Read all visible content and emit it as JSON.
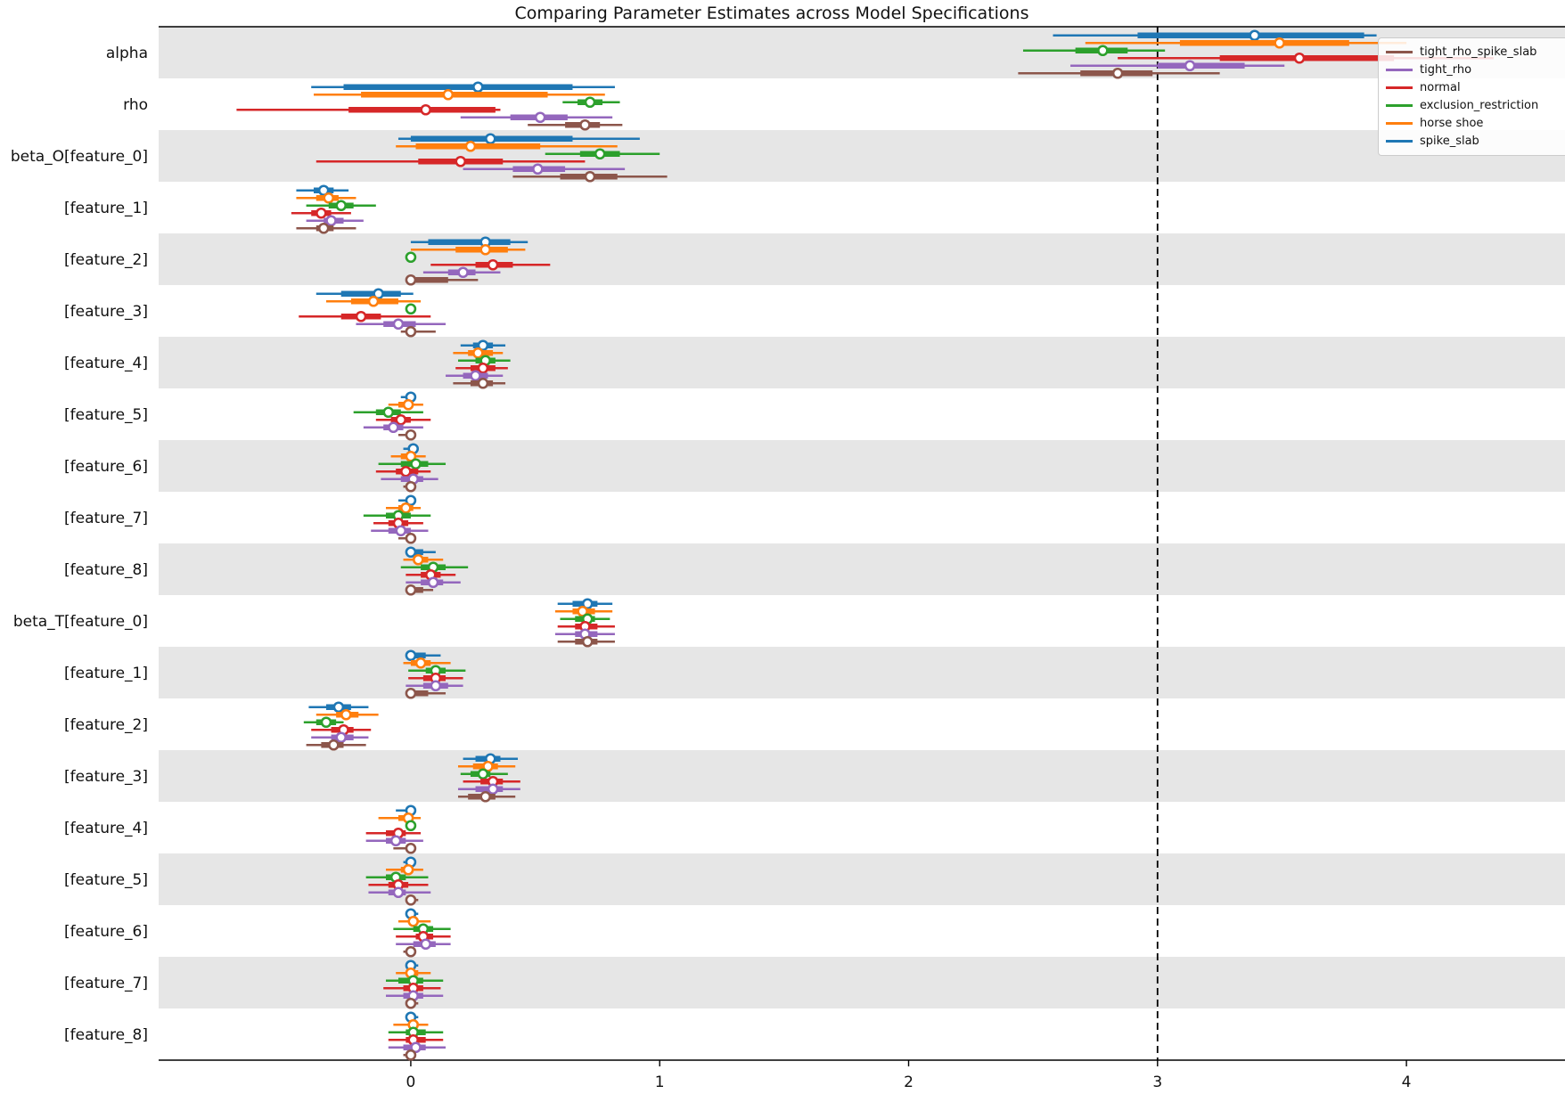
{
  "title": "Comparing Parameter Estimates across Model Specifications",
  "legend": {
    "entries": [
      {
        "label": "tight_rho_spike_slab",
        "color": "#8c564b"
      },
      {
        "label": "tight_rho",
        "color": "#9467bd"
      },
      {
        "label": "normal",
        "color": "#d62728"
      },
      {
        "label": "exclusion_restriction",
        "color": "#2ca02c"
      },
      {
        "label": "horse shoe",
        "color": "#ff7f0e"
      },
      {
        "label": "spike_slab",
        "color": "#1f77b4"
      }
    ]
  },
  "chart_data": {
    "type": "forest",
    "title": "Comparing Parameter Estimates across Model Specifications",
    "xlim": [
      -1.013,
      4.637
    ],
    "x_ticks": [
      0,
      1,
      2,
      3,
      4
    ],
    "reference_line_x": 3,
    "band_color": "#e6e6e6",
    "interval_note": "estimates are [outer_lo, inner_lo, mean, inner_hi, outer_hi] per model",
    "models": [
      {
        "name": "spike_slab",
        "color": "#1f77b4"
      },
      {
        "name": "horse shoe",
        "color": "#ff7f0e"
      },
      {
        "name": "exclusion_restriction",
        "color": "#2ca02c"
      },
      {
        "name": "normal",
        "color": "#d62728"
      },
      {
        "name": "tight_rho",
        "color": "#9467bd"
      },
      {
        "name": "tight_rho_spike_slab",
        "color": "#8c564b"
      }
    ],
    "rows": [
      {
        "label": "alpha",
        "estimates": [
          [
            2.58,
            2.92,
            3.39,
            3.83,
            3.88
          ],
          [
            2.71,
            3.09,
            3.49,
            3.77,
            4.0
          ],
          [
            2.46,
            2.67,
            2.78,
            2.88,
            3.03
          ],
          [
            2.84,
            3.25,
            3.57,
            3.95,
            4.35
          ],
          [
            2.65,
            3.0,
            3.13,
            3.35,
            3.51
          ],
          [
            2.44,
            2.69,
            2.84,
            2.98,
            3.25
          ]
        ]
      },
      {
        "label": "rho",
        "estimates": [
          [
            -0.4,
            -0.27,
            0.27,
            0.65,
            0.82
          ],
          [
            -0.39,
            -0.2,
            0.15,
            0.55,
            0.78
          ],
          [
            0.61,
            0.67,
            0.72,
            0.77,
            0.84
          ],
          [
            -0.7,
            -0.25,
            0.06,
            0.34,
            0.36
          ],
          [
            0.2,
            0.4,
            0.52,
            0.63,
            0.81
          ],
          [
            0.47,
            0.62,
            0.7,
            0.76,
            0.85
          ]
        ]
      },
      {
        "label": "beta_O[feature_0]",
        "estimates": [
          [
            -0.05,
            0.0,
            0.32,
            0.65,
            0.92
          ],
          [
            -0.06,
            0.02,
            0.24,
            0.52,
            0.83
          ],
          [
            0.54,
            0.68,
            0.76,
            0.84,
            1.0
          ],
          [
            -0.38,
            0.03,
            0.2,
            0.37,
            0.7
          ],
          [
            0.21,
            0.41,
            0.51,
            0.62,
            0.86
          ],
          [
            0.41,
            0.6,
            0.72,
            0.83,
            1.03
          ]
        ]
      },
      {
        "label": "[feature_1]",
        "estimates": [
          [
            -0.46,
            -0.39,
            -0.35,
            -0.31,
            -0.25
          ],
          [
            -0.46,
            -0.38,
            -0.33,
            -0.29,
            -0.22
          ],
          [
            -0.42,
            -0.33,
            -0.28,
            -0.23,
            -0.14
          ],
          [
            -0.48,
            -0.4,
            -0.36,
            -0.32,
            -0.24
          ],
          [
            -0.42,
            -0.35,
            -0.32,
            -0.27,
            -0.19
          ],
          [
            -0.46,
            -0.38,
            -0.35,
            -0.31,
            -0.22
          ]
        ]
      },
      {
        "label": "[feature_2]",
        "estimates": [
          [
            0.0,
            0.07,
            0.3,
            0.4,
            0.47
          ],
          [
            0.0,
            0.18,
            0.3,
            0.39,
            0.46
          ],
          [
            0.0,
            0.0,
            0.0,
            0.0,
            0.0
          ],
          [
            0.08,
            0.26,
            0.33,
            0.41,
            0.56
          ],
          [
            0.05,
            0.15,
            0.21,
            0.26,
            0.36
          ],
          [
            0.0,
            0.01,
            0.0,
            0.15,
            0.27
          ]
        ]
      },
      {
        "label": "[feature_3]",
        "estimates": [
          [
            -0.38,
            -0.28,
            -0.13,
            -0.04,
            0.01
          ],
          [
            -0.34,
            -0.24,
            -0.15,
            -0.05,
            0.04
          ],
          [
            0.0,
            0.0,
            0.0,
            0.0,
            0.0
          ],
          [
            -0.45,
            -0.28,
            -0.2,
            -0.12,
            0.08
          ],
          [
            -0.22,
            -0.11,
            -0.05,
            0.02,
            0.14
          ],
          [
            -0.04,
            -0.02,
            0.0,
            0.02,
            0.1
          ]
        ]
      },
      {
        "label": "[feature_4]",
        "estimates": [
          [
            0.2,
            0.25,
            0.29,
            0.33,
            0.38
          ],
          [
            0.17,
            0.23,
            0.27,
            0.33,
            0.37
          ],
          [
            0.19,
            0.26,
            0.3,
            0.34,
            0.4
          ],
          [
            0.18,
            0.24,
            0.29,
            0.34,
            0.39
          ],
          [
            0.14,
            0.21,
            0.26,
            0.31,
            0.37
          ],
          [
            0.17,
            0.24,
            0.29,
            0.33,
            0.38
          ]
        ]
      },
      {
        "label": "[feature_5]",
        "estimates": [
          [
            -0.04,
            -0.01,
            0.0,
            0.01,
            0.02
          ],
          [
            -0.09,
            -0.05,
            -0.01,
            0.01,
            0.05
          ],
          [
            -0.23,
            -0.14,
            -0.09,
            -0.04,
            0.05
          ],
          [
            -0.14,
            -0.08,
            -0.04,
            0.0,
            0.08
          ],
          [
            -0.19,
            -0.11,
            -0.07,
            -0.03,
            0.05
          ],
          [
            -0.05,
            -0.01,
            0.0,
            0.01,
            0.02
          ]
        ]
      },
      {
        "label": "[feature_6]",
        "estimates": [
          [
            -0.03,
            -0.01,
            0.01,
            0.01,
            0.03
          ],
          [
            -0.08,
            -0.04,
            0.0,
            0.02,
            0.06
          ],
          [
            -0.13,
            -0.04,
            0.02,
            0.07,
            0.14
          ],
          [
            -0.14,
            -0.06,
            -0.02,
            0.03,
            0.08
          ],
          [
            -0.12,
            -0.04,
            0.01,
            0.05,
            0.11
          ],
          [
            -0.03,
            -0.01,
            0.0,
            0.01,
            0.02
          ]
        ]
      },
      {
        "label": "[feature_7]",
        "estimates": [
          [
            -0.05,
            -0.02,
            0.0,
            0.01,
            0.02
          ],
          [
            -0.1,
            -0.05,
            -0.02,
            0.01,
            0.04
          ],
          [
            -0.19,
            -0.1,
            -0.05,
            0.0,
            0.08
          ],
          [
            -0.15,
            -0.09,
            -0.05,
            -0.01,
            0.05
          ],
          [
            -0.16,
            -0.09,
            -0.04,
            0.0,
            0.07
          ],
          [
            -0.05,
            -0.02,
            0.0,
            0.01,
            0.02
          ]
        ]
      },
      {
        "label": "[feature_8]",
        "estimates": [
          [
            -0.01,
            0.0,
            0.0,
            0.05,
            0.1
          ],
          [
            -0.03,
            0.01,
            0.03,
            0.07,
            0.13
          ],
          [
            -0.04,
            0.04,
            0.09,
            0.14,
            0.23
          ],
          [
            -0.02,
            0.04,
            0.08,
            0.12,
            0.18
          ],
          [
            -0.02,
            0.04,
            0.09,
            0.13,
            0.2
          ],
          [
            -0.01,
            0.0,
            0.0,
            0.05,
            0.09
          ]
        ]
      },
      {
        "label": "beta_T[feature_0]",
        "estimates": [
          [
            0.59,
            0.65,
            0.71,
            0.75,
            0.81
          ],
          [
            0.58,
            0.65,
            0.69,
            0.74,
            0.81
          ],
          [
            0.6,
            0.66,
            0.71,
            0.74,
            0.8
          ],
          [
            0.59,
            0.66,
            0.7,
            0.75,
            0.82
          ],
          [
            0.58,
            0.66,
            0.7,
            0.75,
            0.82
          ],
          [
            0.59,
            0.66,
            0.71,
            0.75,
            0.82
          ]
        ]
      },
      {
        "label": "[feature_1]",
        "estimates": [
          [
            -0.01,
            0.0,
            0.0,
            0.06,
            0.12
          ],
          [
            -0.03,
            0.0,
            0.04,
            0.08,
            0.16
          ],
          [
            -0.01,
            0.06,
            0.1,
            0.14,
            0.22
          ],
          [
            -0.01,
            0.05,
            0.1,
            0.14,
            0.21
          ],
          [
            -0.02,
            0.05,
            0.1,
            0.15,
            0.21
          ],
          [
            -0.01,
            0.0,
            0.0,
            0.07,
            0.14
          ]
        ]
      },
      {
        "label": "[feature_2]",
        "estimates": [
          [
            -0.41,
            -0.34,
            -0.29,
            -0.24,
            -0.17
          ],
          [
            -0.38,
            -0.3,
            -0.26,
            -0.21,
            -0.13
          ],
          [
            -0.43,
            -0.38,
            -0.34,
            -0.3,
            -0.27
          ],
          [
            -0.4,
            -0.32,
            -0.27,
            -0.23,
            -0.16
          ],
          [
            -0.4,
            -0.32,
            -0.28,
            -0.23,
            -0.17
          ],
          [
            -0.42,
            -0.36,
            -0.31,
            -0.27,
            -0.18
          ]
        ]
      },
      {
        "label": "[feature_3]",
        "estimates": [
          [
            0.21,
            0.26,
            0.32,
            0.36,
            0.43
          ],
          [
            0.19,
            0.25,
            0.31,
            0.35,
            0.42
          ],
          [
            0.2,
            0.24,
            0.29,
            0.32,
            0.39
          ],
          [
            0.21,
            0.28,
            0.33,
            0.37,
            0.44
          ],
          [
            0.19,
            0.26,
            0.33,
            0.37,
            0.44
          ],
          [
            0.19,
            0.23,
            0.3,
            0.34,
            0.42
          ]
        ]
      },
      {
        "label": "[feature_4]",
        "estimates": [
          [
            -0.06,
            -0.02,
            0.0,
            0.01,
            0.01
          ],
          [
            -0.13,
            -0.05,
            -0.01,
            0.01,
            0.04
          ],
          [
            0.0,
            0.0,
            0.0,
            0.0,
            0.0
          ],
          [
            -0.18,
            -0.1,
            -0.05,
            -0.02,
            0.04
          ],
          [
            -0.18,
            -0.1,
            -0.06,
            -0.02,
            0.05
          ],
          [
            -0.07,
            -0.02,
            0.0,
            0.01,
            0.01
          ]
        ]
      },
      {
        "label": "[feature_5]",
        "estimates": [
          [
            -0.03,
            -0.01,
            0.0,
            0.01,
            0.01
          ],
          [
            -0.1,
            -0.04,
            -0.01,
            0.01,
            0.05
          ],
          [
            -0.18,
            -0.1,
            -0.06,
            -0.02,
            0.07
          ],
          [
            -0.17,
            -0.09,
            -0.05,
            -0.01,
            0.07
          ],
          [
            -0.17,
            -0.09,
            -0.05,
            -0.02,
            0.08
          ],
          [
            -0.02,
            -0.01,
            0.0,
            0.01,
            0.03
          ]
        ]
      },
      {
        "label": "[feature_6]",
        "estimates": [
          [
            -0.01,
            0.0,
            0.0,
            0.02,
            0.03
          ],
          [
            -0.05,
            0.0,
            0.01,
            0.03,
            0.08
          ],
          [
            -0.07,
            0.01,
            0.05,
            0.09,
            0.16
          ],
          [
            -0.06,
            0.02,
            0.05,
            0.09,
            0.16
          ],
          [
            -0.06,
            0.01,
            0.06,
            0.1,
            0.16
          ],
          [
            -0.03,
            -0.01,
            0.0,
            0.01,
            0.01
          ]
        ]
      },
      {
        "label": "[feature_7]",
        "estimates": [
          [
            -0.01,
            0.0,
            0.0,
            0.02,
            0.03
          ],
          [
            -0.06,
            -0.01,
            0.0,
            0.03,
            0.08
          ],
          [
            -0.1,
            -0.05,
            0.01,
            0.05,
            0.13
          ],
          [
            -0.11,
            -0.03,
            0.01,
            0.05,
            0.12
          ],
          [
            -0.1,
            -0.03,
            0.01,
            0.05,
            0.13
          ],
          [
            -0.01,
            0.0,
            0.0,
            0.02,
            0.03
          ]
        ]
      },
      {
        "label": "[feature_8]",
        "estimates": [
          [
            -0.01,
            0.0,
            0.0,
            0.02,
            0.03
          ],
          [
            -0.07,
            -0.01,
            0.01,
            0.03,
            0.07
          ],
          [
            -0.09,
            -0.02,
            0.01,
            0.06,
            0.13
          ],
          [
            -0.09,
            -0.02,
            0.01,
            0.06,
            0.13
          ],
          [
            -0.09,
            -0.03,
            0.02,
            0.06,
            0.14
          ],
          [
            -0.03,
            -0.01,
            0.0,
            0.01,
            0.01
          ]
        ]
      }
    ]
  }
}
